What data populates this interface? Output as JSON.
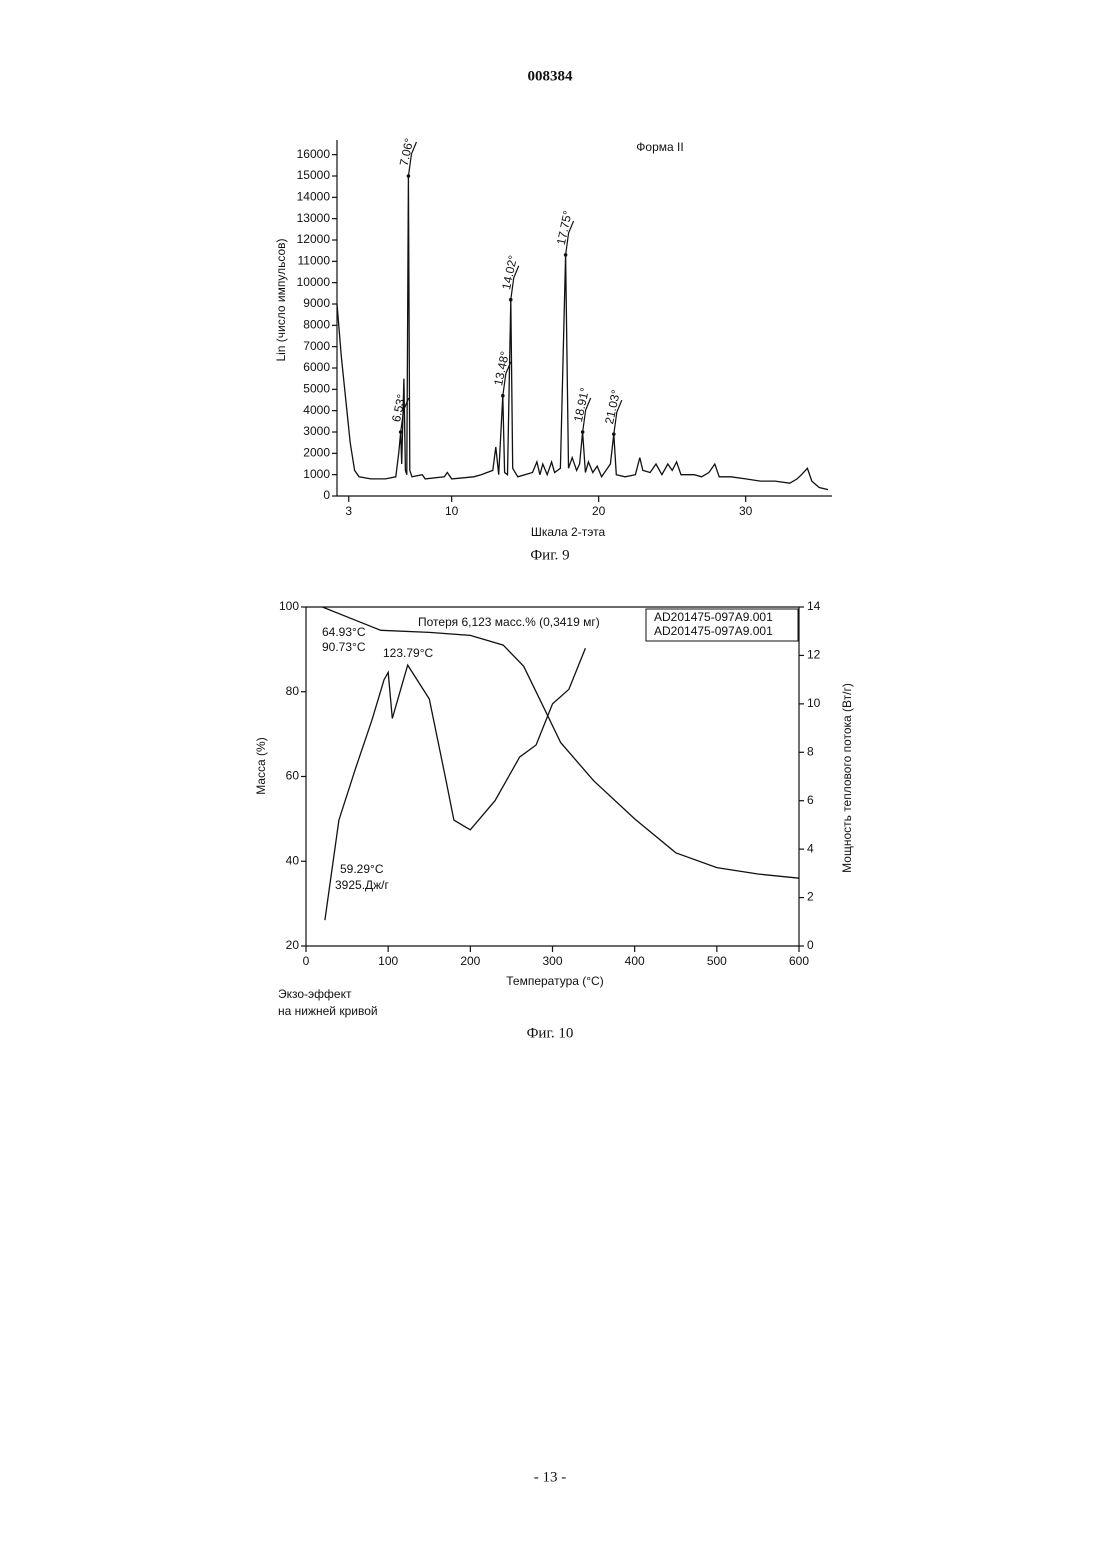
{
  "header": {
    "number": "008384"
  },
  "chart_data": [
    {
      "type": "line",
      "title": "Форма II",
      "x_label": "Шкала 2-тэта",
      "y_label": "Lin (число импульсов)",
      "xlim": [
        2.2,
        35.6
      ],
      "xticks": [
        3,
        10,
        20,
        30
      ],
      "ylim": [
        0,
        16500
      ],
      "yticks": [
        0,
        1000,
        2000,
        3000,
        4000,
        5000,
        6000,
        7000,
        8000,
        9000,
        10000,
        11000,
        12000,
        13000,
        14000,
        15000,
        16000
      ],
      "series": [
        {
          "color": "#111111",
          "x": [
            2.2,
            2.5,
            2.8,
            3.1,
            3.4,
            3.7,
            4.5,
            5.5,
            6.2,
            6.4,
            6.53,
            6.6,
            6.75,
            6.85,
            6.95,
            7.06,
            7.15,
            7.3,
            8.0,
            8.2,
            9.5,
            9.7,
            10.0,
            11.5,
            12.0,
            12.8,
            13.0,
            13.2,
            13.48,
            13.6,
            13.8,
            13.95,
            14.02,
            14.15,
            14.5,
            15.5,
            15.8,
            16.0,
            16.2,
            16.5,
            16.8,
            17.0,
            17.4,
            17.75,
            17.95,
            18.2,
            18.5,
            18.7,
            18.91,
            19.1,
            19.3,
            19.6,
            19.9,
            20.2,
            20.5,
            20.8,
            21.03,
            21.2,
            21.8,
            22.5,
            22.8,
            23.0,
            23.5,
            23.9,
            24.3,
            24.7,
            25.0,
            25.3,
            25.6,
            26.5,
            27.0,
            27.5,
            27.9,
            28.2,
            29.0,
            30.0,
            31.0,
            32.0,
            33.0,
            33.5,
            33.8,
            34.2,
            34.5,
            35.0,
            35.6
          ],
          "values": [
            9000,
            6500,
            4500,
            2500,
            1200,
            900,
            800,
            800,
            900,
            2000,
            3000,
            1500,
            5500,
            1200,
            1000,
            15000,
            1200,
            900,
            1000,
            800,
            900,
            1100,
            800,
            900,
            1000,
            1200,
            2300,
            1000,
            4700,
            1100,
            1000,
            6500,
            9200,
            1300,
            900,
            1100,
            1600,
            1000,
            1500,
            1000,
            1600,
            1100,
            1300,
            11300,
            1300,
            1800,
            1200,
            1500,
            3000,
            1100,
            1600,
            1100,
            1400,
            900,
            1200,
            1500,
            2900,
            1000,
            900,
            1000,
            1800,
            1200,
            1100,
            1500,
            1000,
            1500,
            1200,
            1600,
            1000,
            1000,
            900,
            1100,
            1500,
            900,
            900,
            800,
            700,
            700,
            600,
            800,
            1000,
            1300,
            700,
            400,
            300
          ]
        }
      ],
      "peaks": [
        {
          "label": "6.53°",
          "x": 6.53,
          "y": 3000
        },
        {
          "label": "7.06°",
          "x": 7.06,
          "y": 15000
        },
        {
          "label": "13.48°",
          "x": 13.48,
          "y": 4700
        },
        {
          "label": "14.02°",
          "x": 14.02,
          "y": 9200
        },
        {
          "label": "17.75°",
          "x": 17.75,
          "y": 11300
        },
        {
          "label": "18.91°",
          "x": 18.91,
          "y": 3000
        },
        {
          "label": "21.03°",
          "x": 21.03,
          "y": 2900
        }
      ],
      "caption": "Фиг. 9"
    },
    {
      "type": "line",
      "x_label": "Температура (°C)",
      "y_label": "Масса (%)",
      "y2_label": "Мощность теплового потока (Вт/г)",
      "xlim": [
        0,
        600
      ],
      "xticks": [
        0,
        100,
        200,
        300,
        400,
        500,
        600
      ],
      "ylim": [
        20,
        100
      ],
      "yticks": [
        20,
        40,
        60,
        80,
        100
      ],
      "y2lim": [
        0,
        14
      ],
      "y2ticks": [
        0,
        2,
        4,
        6,
        8,
        10,
        12,
        14
      ],
      "legend": "upper right",
      "series": [
        {
          "name": "AD201475-097A9.001",
          "color": "#111111",
          "x": [
            20,
            65,
            91,
            150,
            200,
            240,
            265,
            290,
            310,
            350,
            400,
            450,
            500,
            550,
            600
          ],
          "values": [
            100,
            96.5,
            94.5,
            94,
            93.3,
            91,
            86,
            76,
            68,
            59,
            50,
            42,
            38.5,
            37,
            36
          ]
        },
        {
          "name": "AD201475-097A9.001",
          "color": "#111111",
          "axis": "y2",
          "x": [
            23,
            40,
            60,
            80,
            95,
            100,
            105,
            123.79,
            150,
            170,
            180,
            195,
            200,
            230,
            260,
            280,
            300,
            320,
            340
          ],
          "values": [
            1.07,
            5.2,
            7.3,
            9.3,
            11,
            11.3,
            9.4,
            11.6,
            10.2,
            6.9,
            5.2,
            4.9,
            4.8,
            6.0,
            7.8,
            8.3,
            10.0,
            10.6,
            12.3
          ]
        }
      ],
      "annotations": [
        "Потеря 6,123 масс.% (0,3419  мг)",
        "64.93°C",
        "90.73°C",
        "123.79°C",
        "59.29°C",
        "3925.Дж/г"
      ],
      "note_lines": [
        "Экзо-эффект",
        "на нижней кривой"
      ],
      "caption": "Фиг. 10"
    }
  ],
  "footer": {
    "page": "- 13 -"
  }
}
